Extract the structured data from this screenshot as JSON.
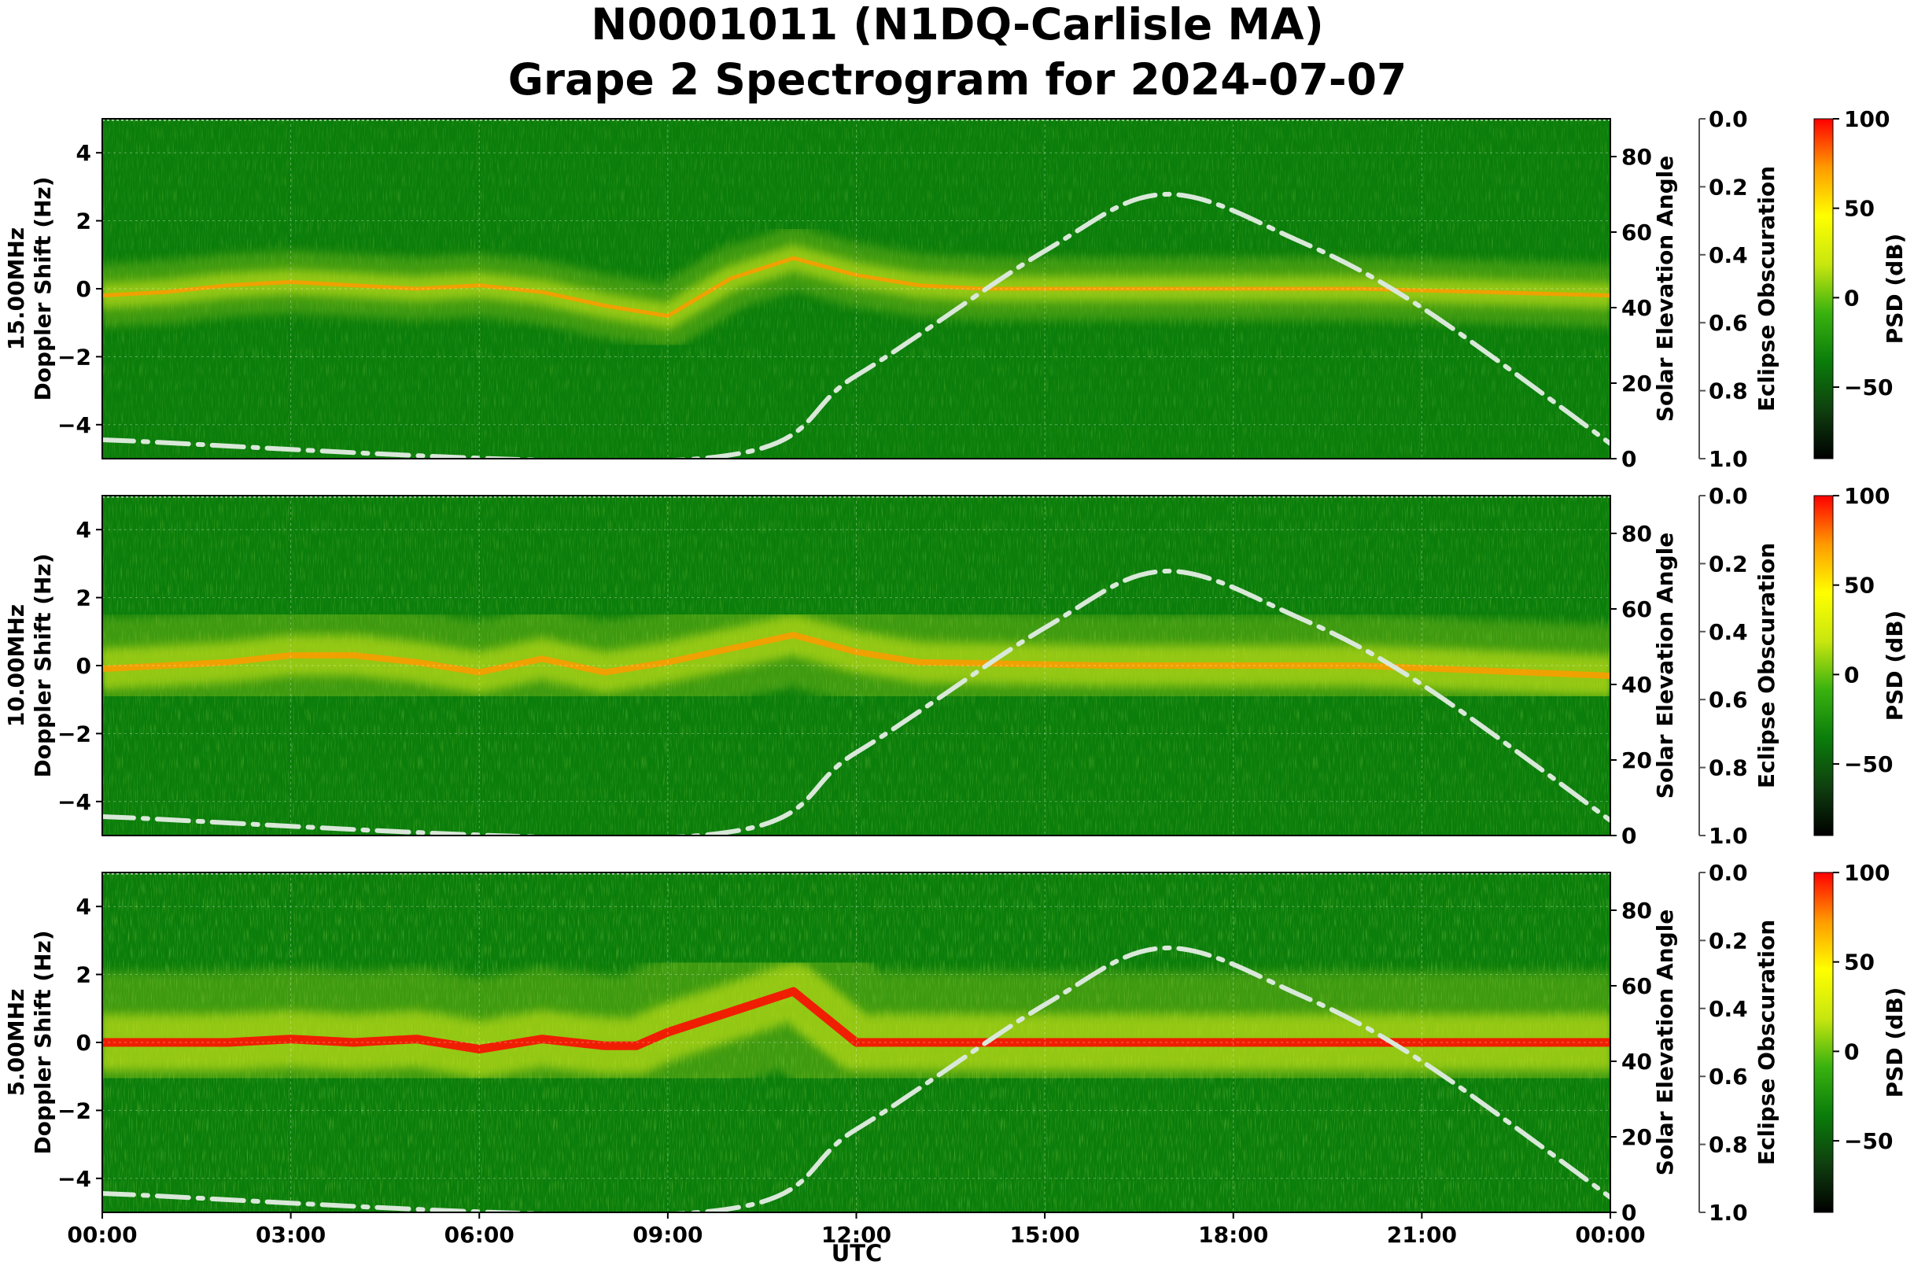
{
  "title_line1": "N0001011 (N1DQ-Carlisle MA)",
  "title_line2": "Grape 2 Spectrogram for 2024-07-07",
  "xlabel": "UTC",
  "x_ticks": [
    "00:00",
    "03:00",
    "06:00",
    "09:00",
    "12:00",
    "15:00",
    "18:00",
    "21:00",
    "00:00"
  ],
  "colors": {
    "background_green": "#0a7d0a",
    "elevation_curve": "#d9e8d9",
    "colorbar": [
      "#000000",
      "#0f3f0f",
      "#0a7d0a",
      "#39b20f",
      "#c8e60f",
      "#ffff00",
      "#ff9a00",
      "#ff0000"
    ]
  },
  "chart_data": {
    "type": "heatmap",
    "x_range_utc_hours": [
      0,
      24
    ],
    "y_range_hz": [
      -5,
      5
    ],
    "y_ticks": [
      -4,
      -2,
      0,
      2,
      4
    ],
    "grid": true,
    "panels": [
      {
        "frequency_label": "15.00MHz",
        "ylabel": "Doppler Shift (Hz)",
        "secondary_ylabel": "Solar Elevation Angle",
        "secondary_y_ticks": [
          0,
          20,
          40,
          60,
          80
        ],
        "secondary_ylim": [
          0,
          90
        ],
        "eclipse_label": "Eclipse Obscuration",
        "eclipse_ticks": [
          "0.0",
          "0.2",
          "0.4",
          "0.6",
          "0.8",
          "1.0"
        ],
        "colorbar_label": "PSD (dB)",
        "colorbar_ticks": [
          100,
          50,
          0,
          -50
        ],
        "colorbar_range": [
          -90,
          100
        ],
        "doppler_trace_hz": [
          [
            0,
            -0.2
          ],
          [
            1,
            -0.1
          ],
          [
            2,
            0.1
          ],
          [
            3,
            0.2
          ],
          [
            4,
            0.1
          ],
          [
            5,
            0.0
          ],
          [
            6,
            0.1
          ],
          [
            7,
            -0.1
          ],
          [
            8,
            -0.5
          ],
          [
            9,
            -0.8
          ],
          [
            10,
            0.3
          ],
          [
            11,
            0.9
          ],
          [
            12,
            0.4
          ],
          [
            13,
            0.1
          ],
          [
            14,
            0.0
          ],
          [
            16,
            0.0
          ],
          [
            18,
            0.0
          ],
          [
            20,
            0.0
          ],
          [
            22,
            -0.1
          ],
          [
            24,
            -0.2
          ]
        ],
        "solar_elevation_deg": [
          [
            0,
            5
          ],
          [
            9.5,
            0
          ],
          [
            12,
            22
          ],
          [
            15,
            55
          ],
          [
            16.9,
            70
          ],
          [
            19,
            58
          ],
          [
            21,
            40
          ],
          [
            24,
            4
          ]
        ],
        "peak_psd_db": 60
      },
      {
        "frequency_label": "10.00MHz",
        "ylabel": "Doppler Shift (Hz)",
        "secondary_ylabel": "Solar Elevation Angle",
        "secondary_y_ticks": [
          0,
          20,
          40,
          60,
          80
        ],
        "secondary_ylim": [
          0,
          90
        ],
        "eclipse_label": "Eclipse Obscuration",
        "eclipse_ticks": [
          "0.0",
          "0.2",
          "0.4",
          "0.6",
          "0.8",
          "1.0"
        ],
        "colorbar_label": "PSD (dB)",
        "colorbar_ticks": [
          100,
          50,
          0,
          -50
        ],
        "colorbar_range": [
          -90,
          100
        ],
        "doppler_trace_hz": [
          [
            0,
            -0.1
          ],
          [
            2,
            0.1
          ],
          [
            3,
            0.3
          ],
          [
            4,
            0.3
          ],
          [
            5,
            0.1
          ],
          [
            6,
            -0.2
          ],
          [
            7,
            0.2
          ],
          [
            8,
            -0.2
          ],
          [
            9,
            0.1
          ],
          [
            10,
            0.5
          ],
          [
            11,
            0.9
          ],
          [
            12,
            0.4
          ],
          [
            13,
            0.1
          ],
          [
            16,
            0.0
          ],
          [
            20,
            0.0
          ],
          [
            24,
            -0.3
          ]
        ],
        "solar_elevation_deg": [
          [
            0,
            5
          ],
          [
            9.5,
            0
          ],
          [
            12,
            22
          ],
          [
            15,
            55
          ],
          [
            16.9,
            70
          ],
          [
            19,
            58
          ],
          [
            21,
            40
          ],
          [
            24,
            4
          ]
        ],
        "peak_psd_db": 85
      },
      {
        "frequency_label": "5.00MHz",
        "ylabel": "Doppler Shift (Hz)",
        "secondary_ylabel": "Solar Elevation Angle",
        "secondary_y_ticks": [
          0,
          20,
          40,
          60,
          80
        ],
        "secondary_ylim": [
          0,
          90
        ],
        "eclipse_label": "Eclipse Obscuration",
        "eclipse_ticks": [
          "0.0",
          "0.2",
          "0.4",
          "0.6",
          "0.8",
          "1.0"
        ],
        "colorbar_label": "PSD (dB)",
        "colorbar_ticks": [
          100,
          50,
          0,
          -50
        ],
        "colorbar_range": [
          -90,
          100
        ],
        "doppler_trace_hz": [
          [
            0,
            0.0
          ],
          [
            2,
            0.0
          ],
          [
            3,
            0.1
          ],
          [
            4,
            0.0
          ],
          [
            5,
            0.1
          ],
          [
            6,
            -0.2
          ],
          [
            7,
            0.1
          ],
          [
            8,
            -0.1
          ],
          [
            8.5,
            -0.1
          ],
          [
            9,
            0.3
          ],
          [
            10,
            0.9
          ],
          [
            11,
            1.5
          ],
          [
            12,
            0.0
          ],
          [
            24,
            0.0
          ]
        ],
        "solar_elevation_deg": [
          [
            0,
            5
          ],
          [
            9.5,
            0
          ],
          [
            12,
            22
          ],
          [
            15,
            55
          ],
          [
            16.9,
            70
          ],
          [
            19,
            58
          ],
          [
            21,
            40
          ],
          [
            24,
            4
          ]
        ],
        "peak_psd_db": 90
      }
    ]
  }
}
